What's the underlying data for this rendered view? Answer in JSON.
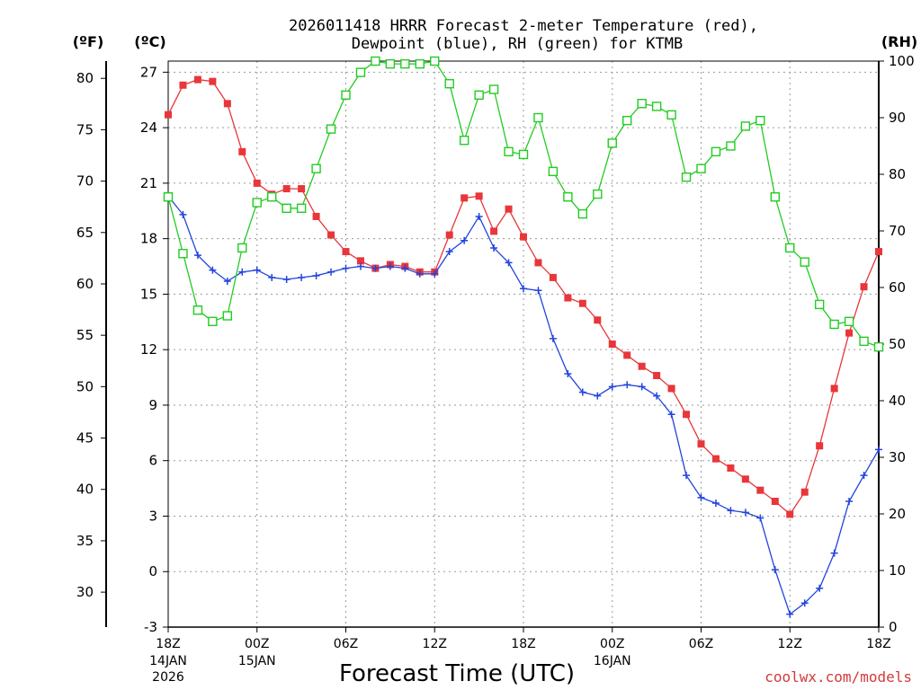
{
  "chart_data": {
    "type": "line",
    "title_line1": "2026011418 HRRR Forecast 2-meter Temperature (red),",
    "title_line2": "Dewpoint (blue), RH (green) for KTMB",
    "unit_f": "(ºF)",
    "unit_c": "(ºC)",
    "unit_rh": "(RH)",
    "xlabel": "Forecast Time (UTC)",
    "credit": "coolwx.com/models",
    "x_hours": [
      0,
      1,
      2,
      3,
      4,
      5,
      6,
      7,
      8,
      9,
      10,
      11,
      12,
      13,
      14,
      15,
      16,
      17,
      18,
      19,
      20,
      21,
      22,
      23,
      24,
      25,
      26,
      27,
      28,
      29,
      30,
      31,
      32,
      33,
      34,
      35,
      36,
      37,
      38,
      39,
      40,
      41,
      42,
      43,
      44,
      45,
      46,
      47,
      48
    ],
    "xlim": [
      0,
      48
    ],
    "x_ticks": [
      {
        "hour": 0,
        "label": "18Z",
        "date": "14JAN",
        "year": "2026"
      },
      {
        "hour": 6,
        "label": "00Z",
        "date": "15JAN",
        "year": ""
      },
      {
        "hour": 12,
        "label": "06Z",
        "date": "",
        "year": ""
      },
      {
        "hour": 18,
        "label": "12Z",
        "date": "",
        "year": ""
      },
      {
        "hour": 24,
        "label": "18Z",
        "date": "",
        "year": ""
      },
      {
        "hour": 30,
        "label": "00Z",
        "date": "16JAN",
        "year": ""
      },
      {
        "hour": 36,
        "label": "06Z",
        "date": "",
        "year": ""
      },
      {
        "hour": 42,
        "label": "12Z",
        "date": "",
        "year": ""
      },
      {
        "hour": 48,
        "label": "18Z",
        "date": "",
        "year": ""
      }
    ],
    "ylim_c": [
      -3,
      27.6
    ],
    "c_ticks": [
      "-3",
      "0",
      "3",
      "6",
      "9",
      "12",
      "15",
      "18",
      "21",
      "24",
      "27"
    ],
    "f_ticks": [
      "30",
      "35",
      "40",
      "45",
      "50",
      "55",
      "60",
      "65",
      "70",
      "75",
      "80"
    ],
    "ylim_rh": [
      0,
      100
    ],
    "rh_ticks": [
      "0",
      "10",
      "20",
      "30",
      "40",
      "50",
      "60",
      "70",
      "80",
      "90",
      "100"
    ],
    "series": [
      {
        "name": "Temperature",
        "units": "C",
        "color": "#e8363a",
        "marker": "filled-square",
        "values": [
          24.7,
          26.3,
          26.6,
          26.5,
          25.3,
          22.7,
          21.0,
          20.4,
          20.7,
          20.7,
          19.2,
          18.2,
          17.3,
          16.8,
          16.4,
          16.6,
          16.5,
          16.2,
          16.2,
          18.2,
          20.2,
          20.3,
          18.4,
          19.6,
          18.1,
          16.7,
          15.9,
          14.8,
          14.5,
          13.6,
          12.3,
          11.7,
          11.1,
          10.6,
          9.9,
          8.5,
          6.9,
          6.1,
          5.6,
          5.0,
          4.4,
          3.8,
          3.1,
          4.3,
          6.8,
          9.9,
          12.9,
          15.4,
          17.3
        ]
      },
      {
        "name": "Dewpoint",
        "units": "C",
        "color": "#2244dd",
        "marker": "plus",
        "values": [
          20.3,
          19.3,
          17.1,
          16.3,
          15.7,
          16.2,
          16.3,
          15.9,
          15.8,
          15.9,
          16.0,
          16.2,
          16.4,
          16.5,
          16.4,
          16.5,
          16.4,
          16.1,
          16.1,
          17.3,
          17.9,
          19.2,
          17.5,
          16.7,
          15.3,
          15.2,
          12.6,
          10.7,
          9.7,
          9.5,
          10.0,
          10.1,
          10.0,
          9.5,
          8.5,
          5.2,
          4.0,
          3.7,
          3.3,
          3.2,
          2.9,
          0.1,
          -2.3,
          -1.7,
          -0.9,
          1.0,
          3.8,
          5.2,
          6.6
        ]
      },
      {
        "name": "RH",
        "units": "%",
        "color": "#22cc22",
        "marker": "open-square",
        "values": [
          76,
          66,
          56,
          54,
          55,
          67,
          75,
          76,
          74,
          74,
          81,
          88,
          94,
          98,
          100,
          99.5,
          99.5,
          99.5,
          100,
          96,
          86,
          94,
          95,
          84,
          83.5,
          90,
          80.5,
          76,
          73,
          76.5,
          85.5,
          89.5,
          92.5,
          92,
          90.5,
          79.5,
          81,
          84,
          85,
          88.5,
          89.5,
          76,
          67,
          64.5,
          57,
          53.5,
          54,
          50.5,
          49.5
        ]
      }
    ]
  }
}
